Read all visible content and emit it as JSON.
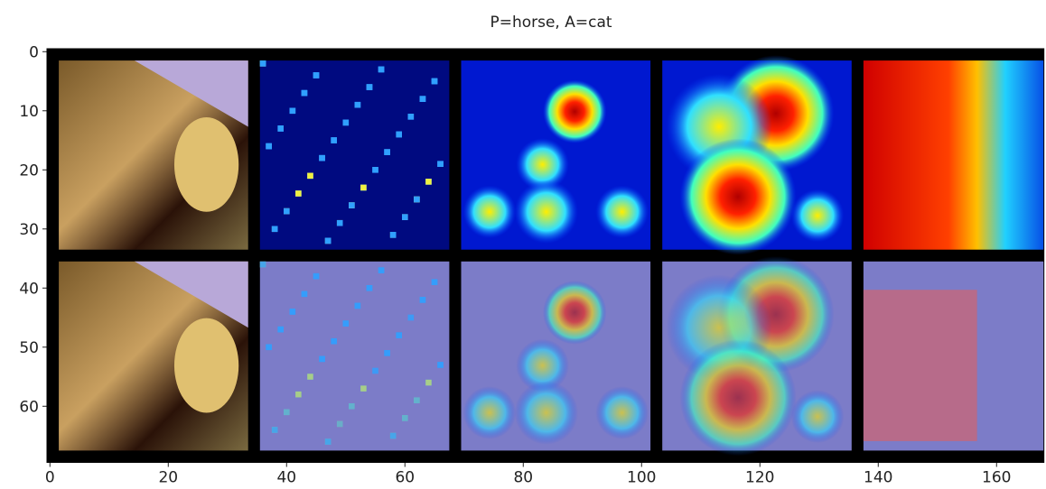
{
  "chart_data": {
    "type": "image",
    "title": "P=horse, A=cat",
    "xlim": [
      -0.5,
      168
    ],
    "ylim": [
      69.5,
      -0.5
    ],
    "xticks": [
      0,
      20,
      40,
      60,
      80,
      100,
      120,
      140,
      160
    ],
    "yticks": [
      0,
      10,
      20,
      30,
      40,
      50,
      60
    ]
  }
}
